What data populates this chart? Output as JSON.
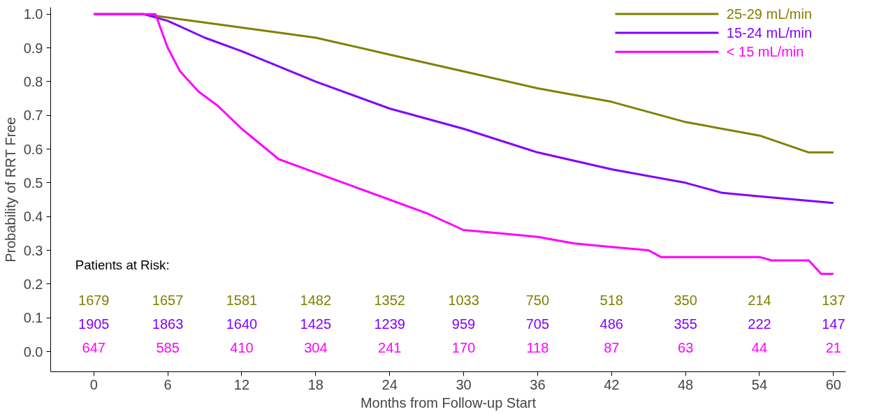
{
  "chart_data": {
    "type": "line",
    "xlabel": "Months from Follow-up Start",
    "ylabel": "Probability of RRT Free",
    "xlim": [
      -3.5,
      61
    ],
    "ylim": [
      -0.06,
      1.02
    ],
    "xticks": [
      0,
      6,
      12,
      18,
      24,
      30,
      36,
      42,
      48,
      54,
      60
    ],
    "yticks": [
      {
        "value": 0,
        "label": "0.0"
      },
      0.1,
      0.2,
      0.3,
      0.4,
      0.5,
      0.6,
      0.7,
      0.8,
      0.9,
      {
        "value": 1,
        "label": "1.0"
      }
    ],
    "grid": false,
    "legend": "top right",
    "marker": "none",
    "line_style": "solid",
    "series": [
      {
        "name": "25-29 mL/min",
        "color": "#808000",
        "x": [
          0,
          4,
          12,
          18,
          24,
          30,
          36,
          42,
          48,
          54,
          58,
          60
        ],
        "values": [
          1.0,
          1.0,
          0.96,
          0.93,
          0.88,
          0.83,
          0.78,
          0.74,
          0.68,
          0.64,
          0.59,
          0.59
        ]
      },
      {
        "name": "15-24 mL/min",
        "color": "#8000ff",
        "x": [
          0,
          4,
          6,
          9,
          12,
          18,
          24,
          30,
          36,
          42,
          48,
          51,
          54,
          60
        ],
        "values": [
          1.0,
          1.0,
          0.98,
          0.93,
          0.89,
          0.8,
          0.72,
          0.66,
          0.59,
          0.54,
          0.5,
          0.47,
          0.46,
          0.44
        ]
      },
      {
        "name": "< 15 mL/min",
        "color": "#ff00ff",
        "x": [
          0,
          5,
          6,
          7,
          8.5,
          10,
          12,
          15,
          18,
          21,
          24,
          27,
          30,
          33,
          36,
          39,
          42,
          45,
          46,
          54,
          55,
          58,
          59,
          60
        ],
        "values": [
          1.0,
          1.0,
          0.9,
          0.83,
          0.77,
          0.73,
          0.66,
          0.57,
          0.53,
          0.49,
          0.45,
          0.41,
          0.36,
          0.35,
          0.34,
          0.32,
          0.31,
          0.3,
          0.28,
          0.28,
          0.27,
          0.27,
          0.23,
          0.23
        ]
      }
    ],
    "annotations": [
      "Patients at Risk:",
      "1679",
      "1657",
      "1581",
      "1482",
      "1352",
      "1033",
      "750",
      "518",
      "350",
      "214",
      "137",
      "1905",
      "1863",
      "1640",
      "1425",
      "1239",
      "959",
      "705",
      "486",
      "355",
      "222",
      "147",
      "647",
      "585",
      "410",
      "304",
      "241",
      "170",
      "118",
      "87",
      "63",
      "44",
      "21"
    ]
  }
}
